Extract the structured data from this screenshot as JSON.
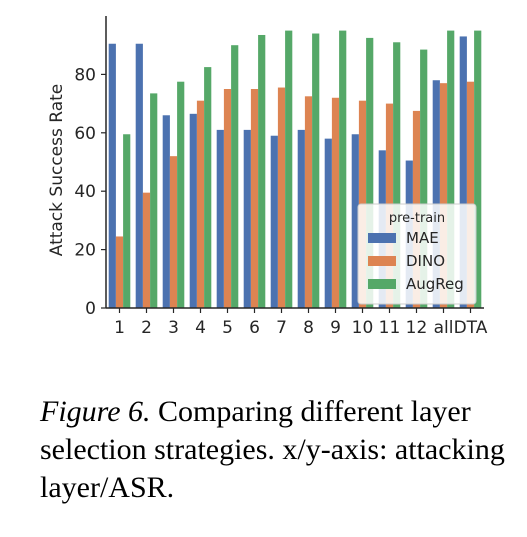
{
  "chart_data": {
    "type": "bar",
    "categories": [
      "1",
      "2",
      "3",
      "4",
      "5",
      "6",
      "7",
      "8",
      "9",
      "10",
      "11",
      "12",
      "all",
      "DTA"
    ],
    "series": [
      {
        "name": "MAE",
        "color": "#4c72b0",
        "values": [
          90.5,
          90.5,
          66,
          66.5,
          61,
          61,
          59,
          61,
          58,
          59.5,
          54,
          50.5,
          78,
          93
        ]
      },
      {
        "name": "DINO",
        "color": "#dd8452",
        "values": [
          24.5,
          39.5,
          52,
          71,
          75,
          75,
          75.5,
          72.5,
          72,
          71,
          70,
          67.5,
          77,
          77.5
        ]
      },
      {
        "name": "AugReg",
        "color": "#55a868",
        "values": [
          59.5,
          73.5,
          77.5,
          82.5,
          90,
          93.5,
          95,
          94,
          95,
          92.5,
          91,
          88.5,
          95,
          95
        ]
      }
    ],
    "xlabel": "",
    "ylabel": "Attack Success Rate",
    "ylim": [
      0,
      100
    ],
    "yticks": [
      "0",
      "20",
      "40",
      "60",
      "80"
    ],
    "legend": {
      "title": "pre-train",
      "position": "lower-right"
    },
    "grid": false
  },
  "caption": {
    "label": "Figure 6.",
    "text": "Comparing different layer selection strategies. x/y-axis: attacking layer/ASR."
  }
}
